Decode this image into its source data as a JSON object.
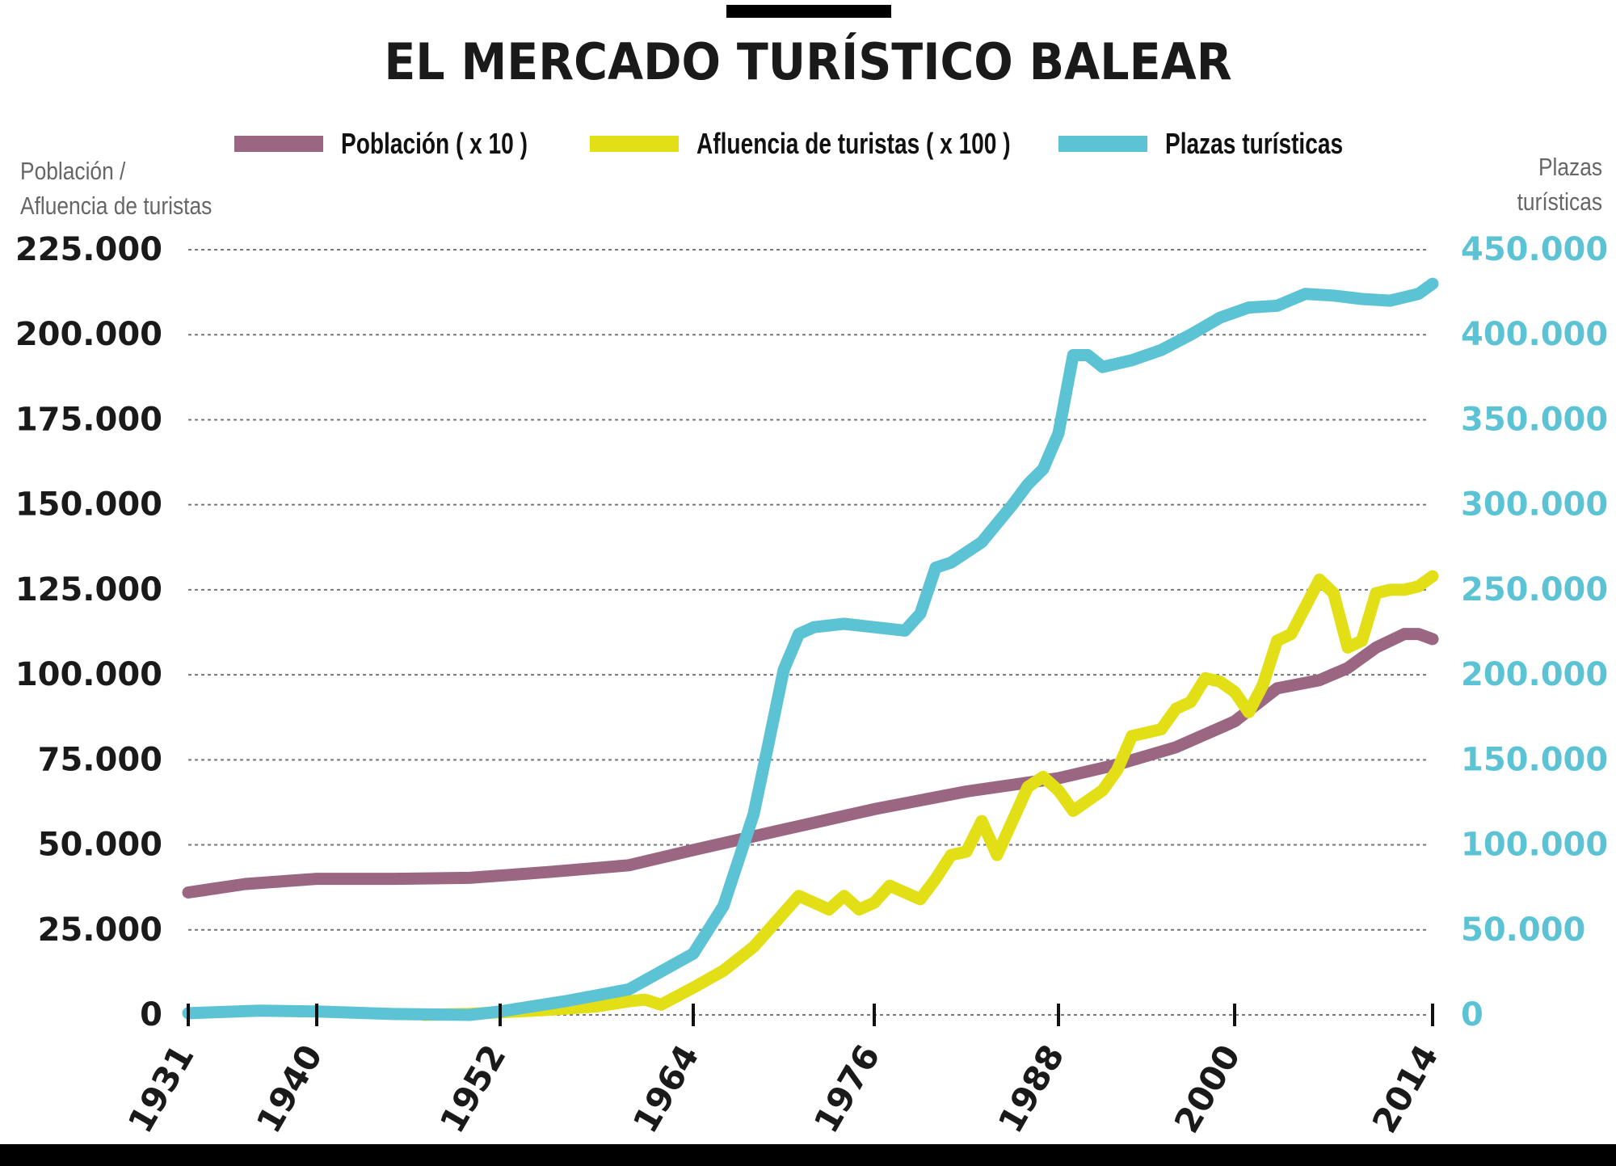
{
  "chart_data": {
    "type": "line",
    "title": "EL MERCADO TURÍSTICO BALEAR",
    "ylabel_left": "Población /\nAfluencia de turistas",
    "ylabel_right": "Plazas\nturísticas",
    "xlim": [
      1931,
      2014
    ],
    "ylim_left": [
      0,
      225000
    ],
    "ylim_right": [
      0,
      450000
    ],
    "x_ticks": [
      "1931",
      "1940",
      "1952",
      "1964",
      "1976",
      "1988",
      "2000",
      "2014"
    ],
    "y_ticks_left": [
      "0",
      "25.000",
      "50.000",
      "75.000",
      "100.000",
      "125.000",
      "150.000",
      "175.000",
      "200.000",
      "225.000"
    ],
    "y_ticks_right": [
      "0",
      "50.000",
      "100.000",
      "150.000",
      "200.000",
      "250.000",
      "300.000",
      "350.000",
      "400.000",
      "450.000"
    ],
    "grid": true,
    "legend_position": "top-center",
    "series": [
      {
        "name": "Población ( x 10 )",
        "axis": "left",
        "color": "#9b6682",
        "x": [
          1931,
          1935,
          1940,
          1945,
          1950,
          1955,
          1960,
          1964,
          1970,
          1976,
          1982,
          1988,
          1992,
          1996,
          2000,
          2003,
          2006,
          2008,
          2010,
          2012,
          2013,
          2014
        ],
        "values": [
          36000,
          38500,
          40000,
          40000,
          40300,
          42000,
          44000,
          48500,
          54500,
          60500,
          65700,
          69600,
          73600,
          78700,
          86300,
          96000,
          98400,
          102000,
          108000,
          112000,
          112000,
          110500
        ]
      },
      {
        "name": "Afluencia de turistas ( x 100 )",
        "axis": "left",
        "color": "#e3df17",
        "x": [
          1947,
          1950,
          1955,
          1958,
          1960,
          1961,
          1962,
          1964,
          1966,
          1968,
          1970,
          1971,
          1972,
          1973,
          1974,
          1975,
          1976,
          1977,
          1978,
          1979,
          1980,
          1981,
          1982,
          1983,
          1984,
          1985,
          1986,
          1987,
          1988,
          1989,
          1990,
          1991,
          1992,
          1993,
          1994,
          1995,
          1996,
          1997,
          1998,
          1999,
          2000,
          2001,
          2002,
          2003,
          2004,
          2005,
          2006,
          2007,
          2008,
          2009,
          2010,
          2011,
          2012,
          2013,
          2014
        ],
        "values": [
          0,
          300,
          1500,
          2500,
          4000,
          4500,
          3000,
          8000,
          13000,
          20000,
          30000,
          35000,
          33000,
          31000,
          35000,
          31000,
          33000,
          38000,
          36000,
          34000,
          40000,
          47000,
          48000,
          57000,
          47000,
          57000,
          67000,
          70000,
          66000,
          60000,
          63000,
          66000,
          72000,
          82000,
          83000,
          84000,
          90000,
          92000,
          99000,
          98000,
          95000,
          89000,
          97000,
          110000,
          112000,
          120000,
          128000,
          124000,
          108000,
          110000,
          124000,
          125000,
          125000,
          126000,
          129000
        ]
      },
      {
        "name": "Plazas turísticas",
        "axis": "right",
        "color": "#5cc3d5",
        "x": [
          1931,
          1936,
          1940,
          1945,
          1950,
          1952,
          1956,
          1960,
          1964,
          1966,
          1968,
          1969,
          1970,
          1971,
          1972,
          1974,
          1976,
          1978,
          1979,
          1980,
          1981,
          1983,
          1985,
          1986,
          1987,
          1988,
          1989,
          1990,
          1991,
          1993,
          1995,
          1997,
          1999,
          2001,
          2003,
          2005,
          2007,
          2009,
          2011,
          2013,
          2014
        ],
        "values": [
          1000,
          2500,
          2000,
          500,
          0,
          2000,
          8000,
          15000,
          36000,
          64000,
          118000,
          160000,
          203000,
          224000,
          228000,
          230000,
          228000,
          226000,
          236000,
          263000,
          266000,
          278000,
          300000,
          312000,
          321000,
          342000,
          388000,
          388000,
          381000,
          385000,
          391000,
          400000,
          410000,
          416000,
          417000,
          424000,
          423000,
          421000,
          420000,
          424000,
          430000
        ]
      }
    ]
  }
}
